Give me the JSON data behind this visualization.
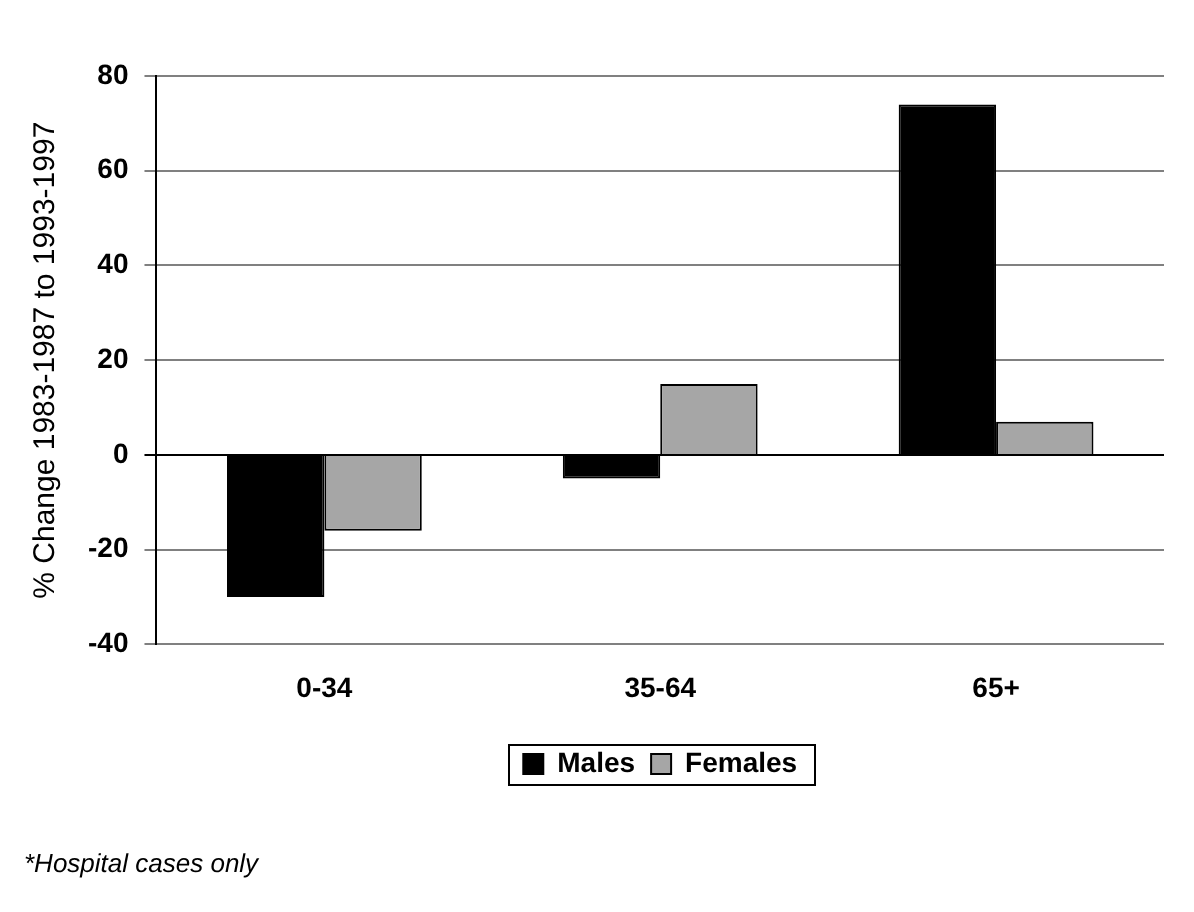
{
  "chart_data": {
    "type": "bar",
    "ylabel": "% Change 1983-1987 to 1993-1997",
    "categories": [
      "0-34",
      "35-64",
      "65+"
    ],
    "series": [
      {
        "name": "Males",
        "color": "#000000",
        "values": [
          -30,
          -5,
          74
        ]
      },
      {
        "name": "Females",
        "color": "#a6a6a6",
        "values": [
          -16,
          15,
          7
        ]
      }
    ],
    "ylim": [
      -40,
      80
    ],
    "yticks": [
      -40,
      -20,
      0,
      20,
      40,
      60,
      80
    ],
    "grid": "y",
    "legend": "bottom",
    "annotations": [
      "*Hospital cases only"
    ]
  }
}
